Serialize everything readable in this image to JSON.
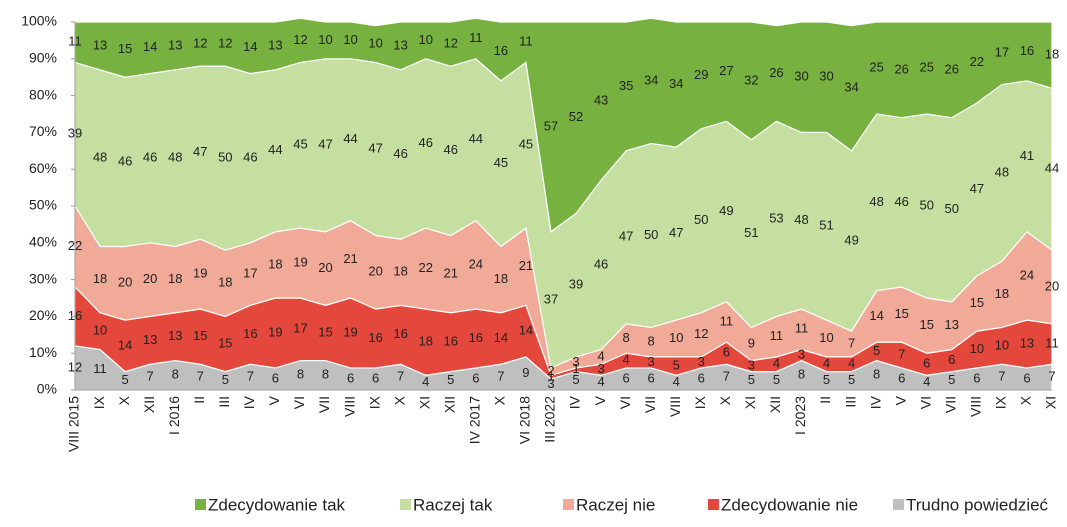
{
  "chart_data": {
    "type": "stacked_area",
    "categories": [
      "VIII 2015",
      "IX",
      "X",
      "XII",
      "I 2016",
      "II",
      "III",
      "IV",
      "V",
      "VI",
      "VII",
      "VIII",
      "IX",
      "X",
      "XI",
      "XII",
      "IV 2017",
      "X",
      "VI 2018",
      "III 2022",
      "IV",
      "V",
      "VI",
      "VII",
      "VIII",
      "IX",
      "X",
      "XI",
      "XII",
      "I 2023",
      "II",
      "III",
      "IV",
      "V",
      "VI",
      "VII",
      "VIII",
      "IX",
      "X",
      "XI"
    ],
    "series": [
      {
        "name": "Zdecydowanie tak",
        "color": "#77b13f",
        "values": [
          11,
          13,
          15,
          14,
          13,
          12,
          12,
          14,
          13,
          12,
          10,
          10,
          10,
          13,
          10,
          12,
          11,
          16,
          11,
          57,
          52,
          43,
          35,
          34,
          34,
          29,
          27,
          32,
          26,
          30,
          30,
          34,
          25,
          26,
          25,
          26,
          22,
          17,
          16,
          18
        ]
      },
      {
        "name": "Raczej tak",
        "color": "#c4dfa0",
        "values": [
          39,
          48,
          46,
          46,
          48,
          47,
          50,
          46,
          44,
          45,
          47,
          44,
          47,
          46,
          46,
          46,
          44,
          45,
          45,
          37,
          39,
          46,
          47,
          50,
          47,
          50,
          49,
          51,
          53,
          48,
          51,
          49,
          48,
          46,
          50,
          50,
          47,
          48,
          41,
          44
        ]
      },
      {
        "name": "Raczej nie",
        "color": "#f2aa98",
        "values": [
          22,
          18,
          20,
          20,
          18,
          19,
          18,
          17,
          18,
          19,
          20,
          21,
          20,
          18,
          22,
          21,
          24,
          18,
          21,
          2,
          3,
          4,
          8,
          8,
          10,
          12,
          11,
          9,
          11,
          11,
          10,
          7,
          14,
          15,
          15,
          13,
          15,
          18,
          24,
          20
        ]
      },
      {
        "name": "Zdecydowanie nie",
        "color": "#e4473b",
        "values": [
          16,
          10,
          14,
          13,
          13,
          15,
          15,
          16,
          19,
          17,
          15,
          19,
          16,
          16,
          18,
          16,
          16,
          14,
          14,
          1,
          1,
          3,
          4,
          3,
          5,
          3,
          6,
          3,
          4,
          3,
          4,
          4,
          5,
          7,
          6,
          6,
          10,
          10,
          13,
          11
        ]
      },
      {
        "name": "Trudno powiedzieć",
        "color": "#bfbfbf",
        "values": [
          12,
          11,
          5,
          7,
          8,
          7,
          5,
          7,
          6,
          8,
          8,
          6,
          6,
          7,
          4,
          5,
          6,
          7,
          9,
          3,
          5,
          4,
          6,
          6,
          4,
          6,
          7,
          5,
          5,
          8,
          5,
          5,
          8,
          6,
          4,
          5,
          6,
          7,
          6,
          7
        ]
      }
    ],
    "ylim": [
      0,
      100
    ],
    "yticks": [
      {
        "value": 0,
        "label": "0%"
      },
      {
        "value": 10,
        "label": "10%"
      },
      {
        "value": 20,
        "label": "20%"
      },
      {
        "value": 30,
        "label": "30%"
      },
      {
        "value": 40,
        "label": "40%"
      },
      {
        "value": 50,
        "label": "50%"
      },
      {
        "value": 60,
        "label": "60%"
      },
      {
        "value": 70,
        "label": "70%"
      },
      {
        "value": 80,
        "label": "80%"
      },
      {
        "value": 90,
        "label": "90%"
      },
      {
        "value": 100,
        "label": "100%"
      }
    ],
    "legend": "bottom"
  }
}
